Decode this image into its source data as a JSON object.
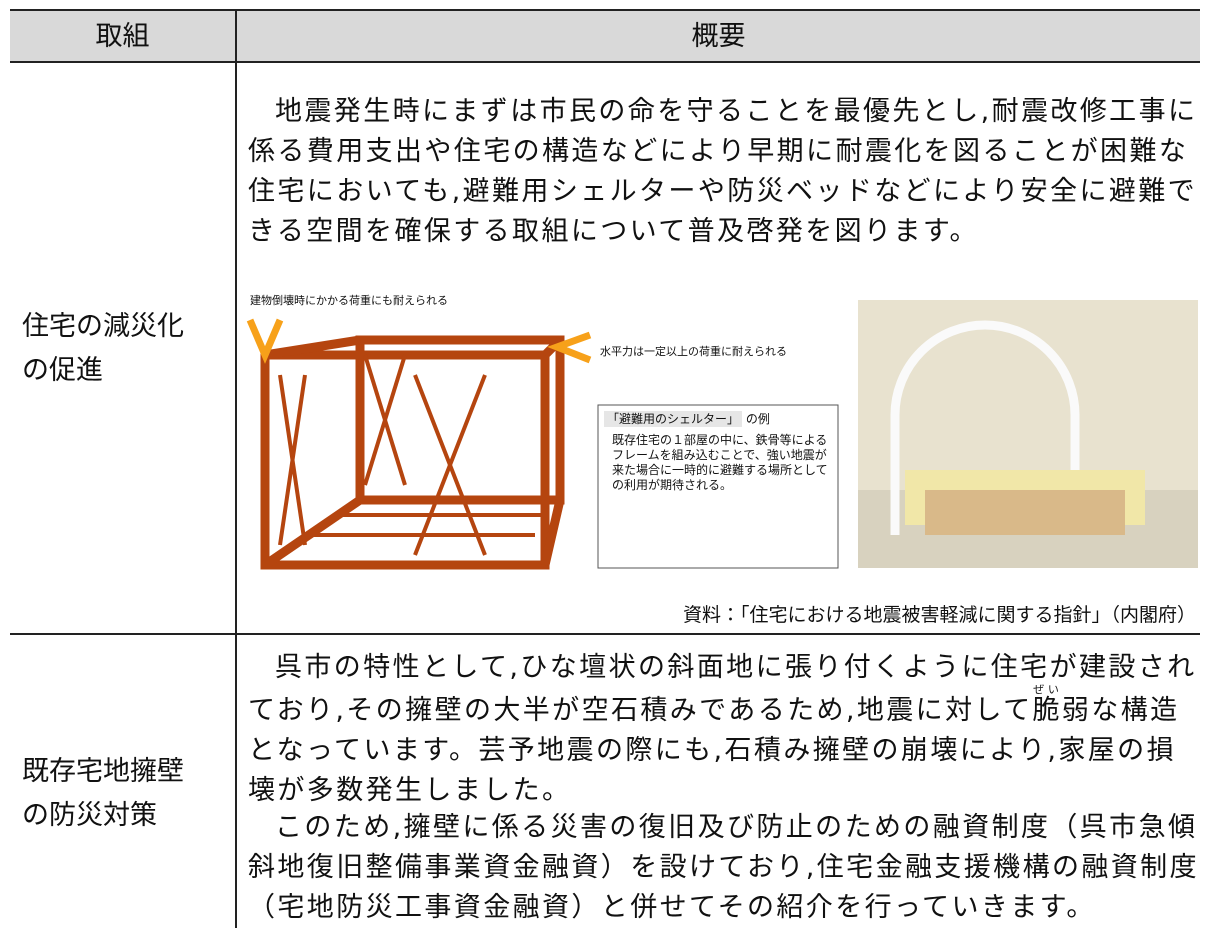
{
  "table": {
    "header": [
      "取組",
      "概要"
    ],
    "rows": [
      {
        "label": "住宅の減災化の促進",
        "text": "地震発生時にまずは市民の命を守ることを最優先とし,耐震改修工事に係る費用支出や住宅の構造などにより早期に耐震化を図ることが困難な住宅においても,避難用シェルターや防災ベッドなどにより安全に避難できる空間を確保する取組について普及啓発を図ります。",
        "figure": {
          "load_label": "建物倒壊時にかかる荷重にも耐えられる",
          "horizontal_label": "水平力は一定以上の荷重に耐えられる",
          "box_title": "「避難用のシェルター」",
          "box_title_suffix": "の例",
          "box_text": "既存住宅の１部屋の中に、鉄骨等によるフレームを組み込むことで、強い地震が来た場合に一時的に避難する場所としての利用が期待される。"
        },
        "source": "資料：「住宅における地震被害軽減に関する指針」（内閣府）"
      },
      {
        "label": "既存宅地擁壁の防災対策",
        "paragraph1": {
          "before": "呉市の特性として,ひな壇状の斜面地に張り付くように住宅が建設されており,その擁壁の大半が空石積みであるため,地震に対して",
          "base": "脆",
          "ruby": "ぜい",
          "after": "弱な構造となっています。芸予地震の際にも,石積み擁壁の崩壊により,家屋の損壊が多数発生しました。"
        },
        "paragraph2": "このため,擁壁に係る災害の復旧及び防止のための融資制度（呉市急傾斜地復旧整備事業資金融資）を設けており,住宅金融支援機構の融資制度（宅地防災工事資金融資）と併せてその紹介を行っていきます。"
      }
    ]
  }
}
